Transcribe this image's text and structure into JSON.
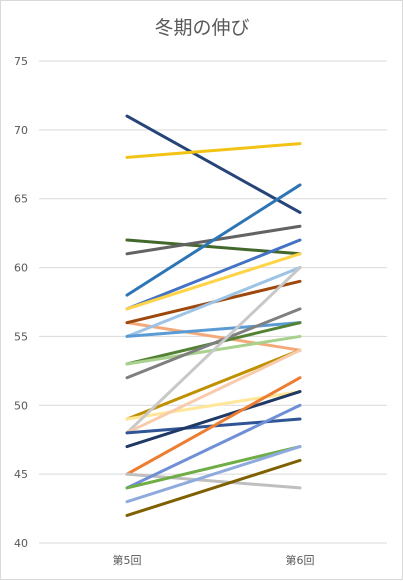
{
  "chart_data": {
    "type": "line",
    "title": "冬期の伸び",
    "categories": [
      "第5回",
      "第6回"
    ],
    "ylim": [
      40,
      75
    ],
    "yticks": [
      40,
      45,
      50,
      55,
      60,
      65,
      70,
      75
    ],
    "grid": true,
    "legend": "none",
    "series": [
      {
        "values": [
          71,
          64
        ],
        "color": "#264478"
      },
      {
        "values": [
          68,
          69
        ],
        "color": "#f2c314"
      },
      {
        "values": [
          62,
          61
        ],
        "color": "#43682b"
      },
      {
        "values": [
          61,
          63
        ],
        "color": "#636363"
      },
      {
        "values": [
          58,
          66
        ],
        "color": "#2e75b6"
      },
      {
        "values": [
          57,
          62
        ],
        "color": "#4472c4"
      },
      {
        "values": [
          57,
          61
        ],
        "color": "#ffd447"
      },
      {
        "values": [
          56,
          54
        ],
        "color": "#f4a97a"
      },
      {
        "values": [
          56,
          59
        ],
        "color": "#9e480e"
      },
      {
        "values": [
          55,
          60
        ],
        "color": "#9dc3e6"
      },
      {
        "values": [
          55,
          56
        ],
        "color": "#5b9bd5"
      },
      {
        "values": [
          53,
          56
        ],
        "color": "#548235"
      },
      {
        "values": [
          53,
          55
        ],
        "color": "#a9d18e"
      },
      {
        "values": [
          52,
          57
        ],
        "color": "#7f7f7f"
      },
      {
        "values": [
          49,
          54
        ],
        "color": "#bf9000"
      },
      {
        "values": [
          49,
          51
        ],
        "color": "#ffe699"
      },
      {
        "values": [
          48,
          60
        ],
        "color": "#c8c8c8"
      },
      {
        "values": [
          48,
          54
        ],
        "color": "#f8cbad"
      },
      {
        "values": [
          48,
          49
        ],
        "color": "#2f5597"
      },
      {
        "values": [
          47,
          51
        ],
        "color": "#1f3864"
      },
      {
        "values": [
          45,
          52
        ],
        "color": "#ed7d31"
      },
      {
        "values": [
          45,
          44
        ],
        "color": "#bfbfbf"
      },
      {
        "values": [
          44,
          50
        ],
        "color": "#6f8fd6"
      },
      {
        "values": [
          44,
          47
        ],
        "color": "#70ad47"
      },
      {
        "values": [
          43,
          47
        ],
        "color": "#8faadc"
      },
      {
        "values": [
          42,
          46
        ],
        "color": "#7f6000"
      }
    ]
  }
}
